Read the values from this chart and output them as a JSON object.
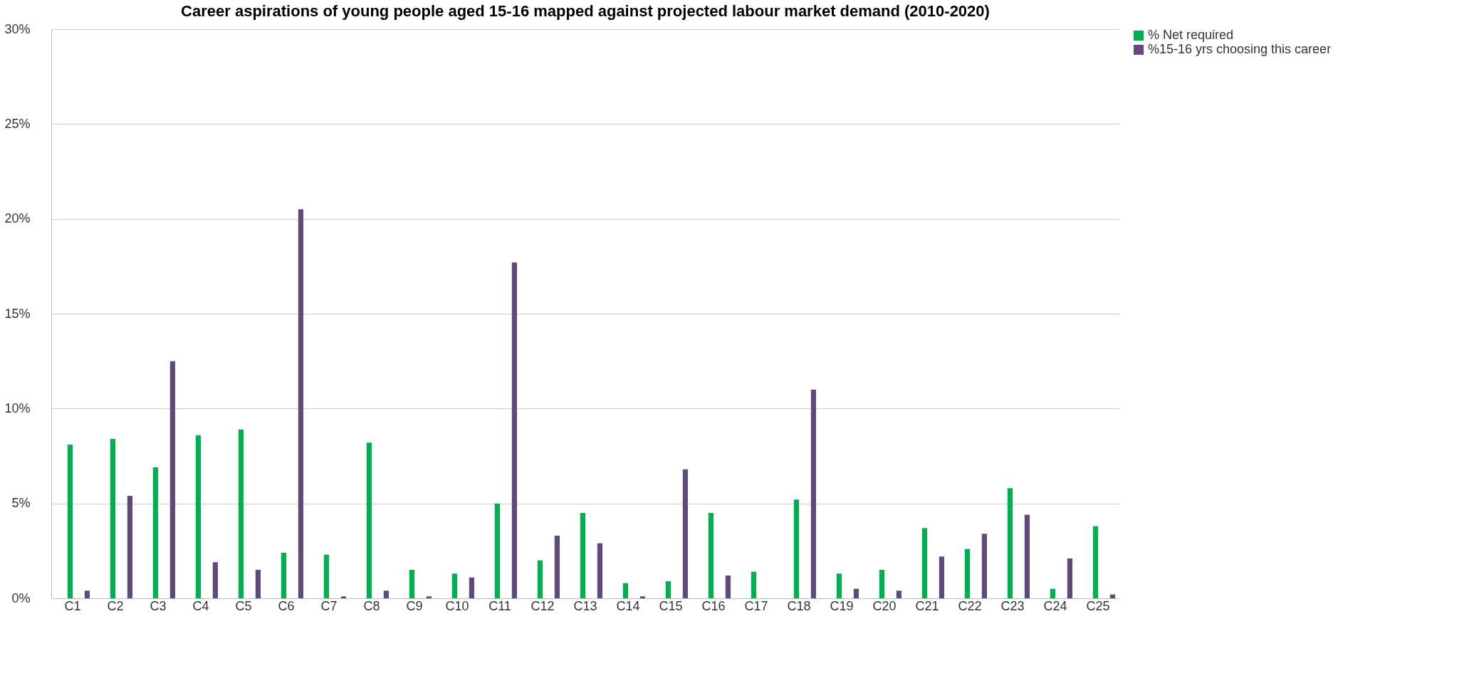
{
  "chart_data": {
    "type": "bar",
    "title": "Career aspirations of young people aged 15-16 mapped against projected labour market demand (2010-2020)",
    "categories": [
      "C1",
      "C2",
      "C3",
      "C4",
      "C5",
      "C6",
      "C7",
      "C8",
      "C9",
      "C10",
      "C11",
      "C12",
      "C13",
      "C14",
      "C15",
      "C16",
      "C17",
      "C18",
      "C19",
      "C20",
      "C21",
      "C22",
      "C23",
      "C24",
      "C25"
    ],
    "series": [
      {
        "name": "% Net required",
        "color": "#00b050",
        "values": [
          8.1,
          8.4,
          6.9,
          8.6,
          8.9,
          2.4,
          2.3,
          8.2,
          1.5,
          1.3,
          5.0,
          2.0,
          4.5,
          0.8,
          0.9,
          4.5,
          1.4,
          5.2,
          1.3,
          1.5,
          3.7,
          2.6,
          5.8,
          0.5,
          3.8
        ]
      },
      {
        "name": "%15-16 yrs choosing this career",
        "color": "#604a7b",
        "values": [
          0.4,
          5.4,
          12.5,
          1.9,
          1.5,
          20.5,
          0.1,
          0.4,
          0.1,
          1.1,
          17.7,
          3.3,
          2.9,
          0.1,
          6.8,
          1.2,
          0,
          11.0,
          0.5,
          0.4,
          2.2,
          3.4,
          4.4,
          2.1,
          0.2
        ]
      }
    ],
    "ylim": [
      0,
      30
    ],
    "yticks": [
      {
        "value": 0,
        "label": "0%"
      },
      {
        "value": 5,
        "label": "5%"
      },
      {
        "value": 10,
        "label": "10%"
      },
      {
        "value": 15,
        "label": "15%"
      },
      {
        "value": 20,
        "label": "20%"
      },
      {
        "value": 25,
        "label": "25%"
      },
      {
        "value": 30,
        "label": "30%"
      }
    ],
    "grid": "y",
    "legend": "right"
  }
}
